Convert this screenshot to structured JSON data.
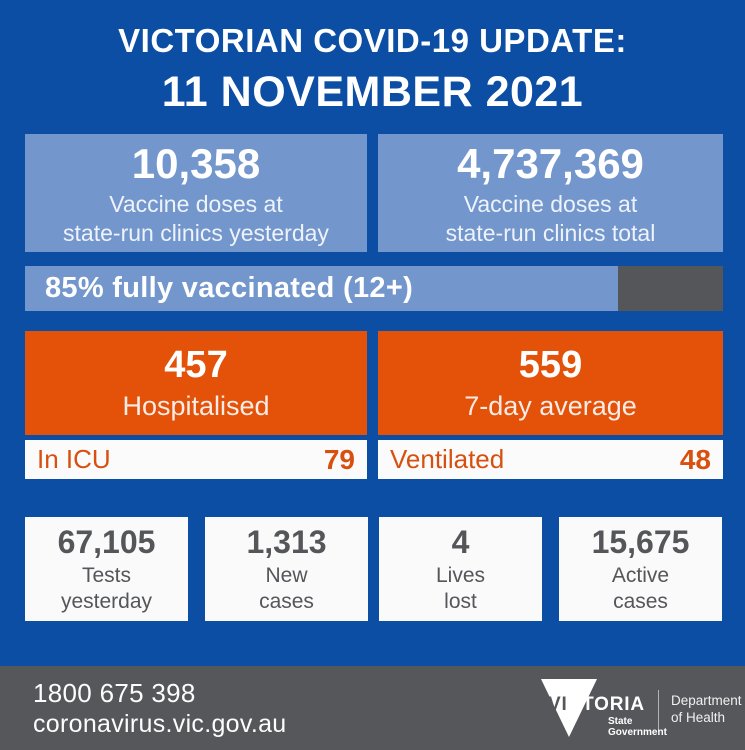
{
  "header": {
    "title_line1": "VICTORIAN COVID-19 UPDATE:",
    "title_line2": "11 NOVEMBER 2021"
  },
  "vaccine_boxes": [
    {
      "value": "10,358",
      "label_line1": "Vaccine doses at",
      "label_line2": "state-run clinics yesterday"
    },
    {
      "value": "4,737,369",
      "label_line1": "Vaccine doses at",
      "label_line2": "state-run clinics total"
    }
  ],
  "vaccination_progress": {
    "label": "85% fully vaccinated (12+)",
    "percent": 85
  },
  "hospital_boxes": [
    {
      "value": "457",
      "label": "Hospitalised"
    },
    {
      "value": "559",
      "label": "7-day average"
    }
  ],
  "icu_rows": [
    {
      "label": "In ICU",
      "value": "79"
    },
    {
      "label": "Ventilated",
      "value": "48"
    }
  ],
  "stat_boxes": [
    {
      "value": "67,105",
      "label_line1": "Tests",
      "label_line2": "yesterday"
    },
    {
      "value": "1,313",
      "label_line1": "New",
      "label_line2": "cases"
    },
    {
      "value": "4",
      "label_line1": "Lives",
      "label_line2": "lost"
    },
    {
      "value": "15,675",
      "label_line1": "Active",
      "label_line2": "cases"
    }
  ],
  "footer": {
    "phone": "1800 675 398",
    "website": "coronavirus.vic.gov.au",
    "logo": {
      "brand_knockout": "VI",
      "brand_rest": "CTORIA",
      "sub_line1": "State",
      "sub_line2": "Government",
      "dept_line1": "Department",
      "dept_line2": "of Health"
    }
  },
  "colors": {
    "background_blue": "#0b4ea3",
    "light_blue": "#7397cd",
    "orange": "#e4520a",
    "orange_text": "#d8500f",
    "dark_gray": "#54565a",
    "footer_gray": "#56575b",
    "card_white": "#fafafa",
    "stat_text_gray": "#55565a"
  }
}
